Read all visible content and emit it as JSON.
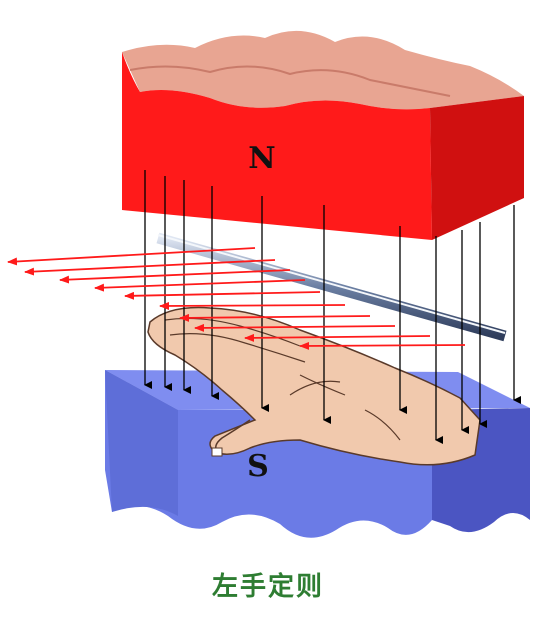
{
  "labels": {
    "north": "N",
    "south": "S"
  },
  "caption": "左手定则",
  "colors": {
    "north_magnet_front": "#ff1a1a",
    "north_magnet_side": "#d01010",
    "north_magnet_top": "#e8a592",
    "south_magnet_front": "#6b7be6",
    "south_magnet_side": "#4b55c2",
    "south_magnet_top": "#7f8df0",
    "field_line": "#000000",
    "force_arrow": "#ff1a1a",
    "conductor": "#6b7fa3",
    "hand": "#f1c9ad",
    "caption": "#2e7d32"
  }
}
